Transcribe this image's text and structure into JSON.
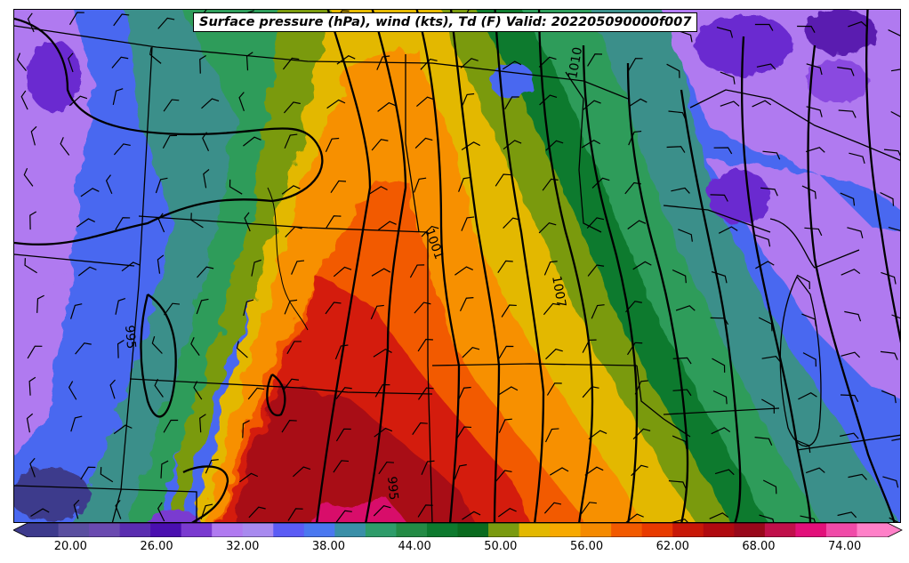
{
  "title": "Surface pressure (hPa), wind (kts), Td (F) Valid: 202205090000f007",
  "contour_labels": [
    "1010",
    "1001",
    "1007",
    "995",
    "995"
  ],
  "colorbar": {
    "tick_labels": [
      "20.00",
      "26.00",
      "32.00",
      "38.00",
      "44.00",
      "50.00",
      "56.00",
      "62.00",
      "68.00",
      "74.00"
    ],
    "ticks": [
      20,
      26,
      32,
      38,
      44,
      50,
      56,
      62,
      68,
      74
    ],
    "range": [
      17,
      77
    ],
    "step": 2,
    "colors": [
      "#3d3a8c",
      "#5a4fa0",
      "#6a4ab0",
      "#5a2db0",
      "#4a0fb0",
      "#7a3ad0",
      "#b07af0",
      "#a88aef",
      "#5b5cf5",
      "#4a78f0",
      "#3a8fa8",
      "#2e9c6a",
      "#238b45",
      "#0d7a2e",
      "#0a6b1f",
      "#7a9a10",
      "#e3b800",
      "#f7a900",
      "#f58a00",
      "#f25a00",
      "#e83a00",
      "#c81808",
      "#b00a10",
      "#98081a",
      "#c0104a",
      "#e2107a",
      "#f04aa8",
      "#ff80c8"
    ]
  },
  "legend_colors": {
    "violet": "#b07af0",
    "purple": "#6a2ad0",
    "blue": "#4a68f0",
    "teal": "#3a8f8a",
    "green": "#2e9c5a",
    "dark_green": "#0d7a2e",
    "olive": "#7a9a10",
    "yellow": "#e3b800",
    "orange": "#f79000",
    "red_orange": "#f25a00",
    "red": "#d41e0a",
    "dark_red": "#a80814",
    "magenta": "#d8106a",
    "pink": "#f04aa8"
  }
}
